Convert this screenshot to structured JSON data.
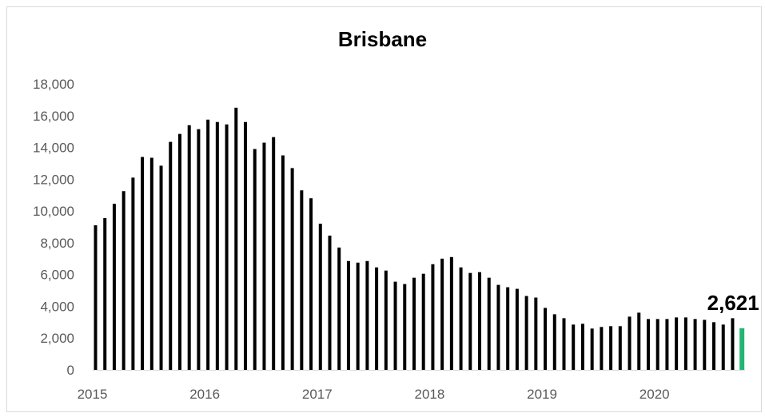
{
  "chart_data": {
    "type": "bar",
    "title": "Brisbane",
    "xlabel": "",
    "ylabel": "",
    "ylim": [
      0,
      18000
    ],
    "yticks": [
      0,
      2000,
      4000,
      6000,
      8000,
      10000,
      12000,
      14000,
      16000,
      18000
    ],
    "ytick_labels": [
      "0",
      "2,000",
      "4,000",
      "6,000",
      "8,000",
      "10,000",
      "12,000",
      "14,000",
      "16,000",
      "18,000"
    ],
    "xtick_labels": [
      "2015",
      "2016",
      "2017",
      "2018",
      "2019",
      "2020"
    ],
    "grid": false,
    "legend": "none",
    "start": "2015-01",
    "frequency": "monthly",
    "bar_color": "#000000",
    "highlight_color": "#22b573",
    "highlight_index": 69,
    "highlight_label": "2,621",
    "values": [
      9100,
      9550,
      10450,
      11250,
      12100,
      13400,
      13350,
      12850,
      14350,
      14850,
      15400,
      15150,
      15750,
      15600,
      15450,
      16500,
      15600,
      13900,
      14300,
      14650,
      13500,
      12700,
      11300,
      10800,
      9200,
      8450,
      7700,
      6850,
      6750,
      6850,
      6450,
      6250,
      5550,
      5400,
      5800,
      6050,
      6650,
      7000,
      7100,
      6450,
      6100,
      6150,
      5800,
      5350,
      5200,
      5100,
      4650,
      4550,
      3900,
      3500,
      3250,
      2850,
      2900,
      2600,
      2700,
      2750,
      2750,
      3350,
      3600,
      3200,
      3200,
      3200,
      3300,
      3300,
      3200,
      3150,
      3000,
      2850,
      3250,
      2621
    ]
  }
}
